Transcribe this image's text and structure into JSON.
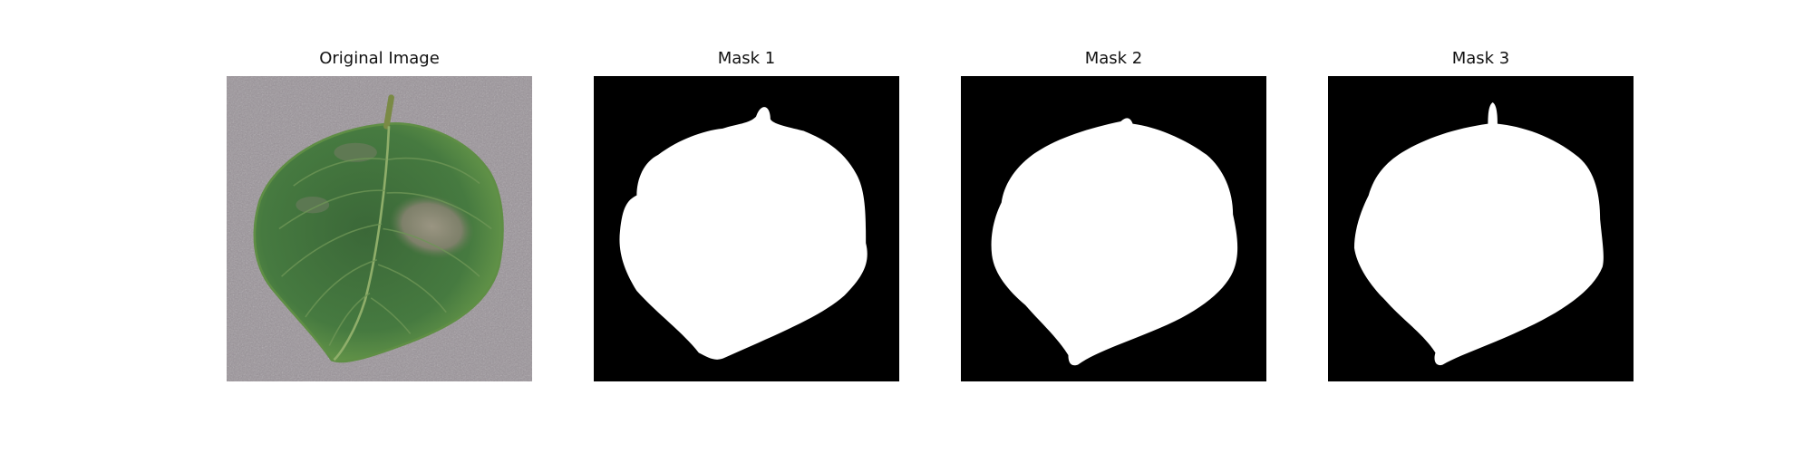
{
  "figure": {
    "panels": [
      {
        "title": "Original Image",
        "kind": "photo",
        "subject": "leaf-icon"
      },
      {
        "title": "Mask 1",
        "kind": "mask",
        "subject": "leaf-mask-icon"
      },
      {
        "title": "Mask 2",
        "kind": "mask",
        "subject": "leaf-mask-icon"
      },
      {
        "title": "Mask 3",
        "kind": "mask",
        "subject": "leaf-mask-icon"
      }
    ],
    "colors": {
      "background": "#9c959a",
      "leaf_dark": "#3d6a3a",
      "leaf_mid": "#4f8046",
      "leaf_edge": "#6a9a4a",
      "lesion": "#8a8670",
      "mask_bg": "#000000",
      "mask_fg": "#ffffff"
    }
  }
}
